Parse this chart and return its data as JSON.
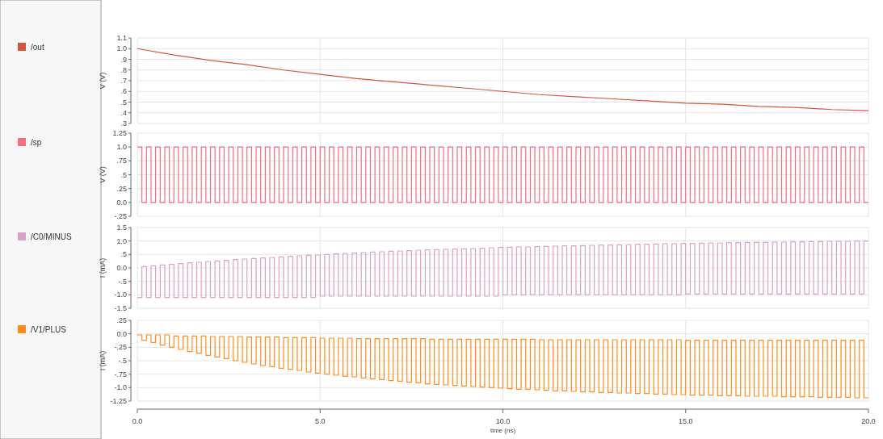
{
  "chart_data": [
    {
      "type": "line",
      "ylabel": "V (V)",
      "legend": "left",
      "grid": true,
      "tick_labels": "y",
      "xlim": [
        0,
        20
      ],
      "xticks": [
        {
          "value": 0,
          "label": null
        },
        {
          "value": 5,
          "label": null
        },
        {
          "value": 10,
          "label": null
        },
        {
          "value": 15,
          "label": null
        },
        {
          "value": 20,
          "label": null
        }
      ],
      "ylim": [
        0.3,
        1.1
      ],
      "yticks": [
        {
          "value": 1.1,
          "label": "1.1"
        },
        {
          "value": 1.0,
          "label": "1.0"
        },
        {
          "value": 0.9,
          "label": ".9"
        },
        {
          "value": 0.8,
          "label": ".8"
        },
        {
          "value": 0.7,
          "label": ".7"
        },
        {
          "value": 0.6,
          "label": ".6"
        },
        {
          "value": 0.5,
          "label": ".5"
        },
        {
          "value": 0.4,
          "label": ".4"
        },
        {
          "value": 0.3,
          "label": ".3"
        }
      ],
      "series": [
        {
          "name": "/out",
          "color": "#d4553a",
          "x": [
            0,
            1,
            2,
            3,
            4,
            5,
            6,
            7,
            8,
            9,
            10,
            11,
            12,
            13,
            14,
            15,
            16,
            17,
            18,
            19,
            20
          ],
          "values": [
            1.0,
            0.94,
            0.89,
            0.85,
            0.8,
            0.76,
            0.72,
            0.69,
            0.66,
            0.63,
            0.6,
            0.57,
            0.55,
            0.53,
            0.51,
            0.49,
            0.48,
            0.46,
            0.45,
            0.43,
            0.42
          ]
        }
      ]
    },
    {
      "type": "step",
      "ylabel": "V (V)",
      "legend": "left",
      "grid": true,
      "tick_labels": "y",
      "xlim": [
        0,
        20
      ],
      "xticks": [
        {
          "value": 0,
          "label": null
        },
        {
          "value": 5,
          "label": null
        },
        {
          "value": 10,
          "label": null
        },
        {
          "value": 15,
          "label": null
        },
        {
          "value": 20,
          "label": null
        }
      ],
      "ylim": [
        -0.25,
        1.25
      ],
      "yticks": [
        {
          "value": 1.25,
          "label": "1.25"
        },
        {
          "value": 1.0,
          "label": "1.0"
        },
        {
          "value": 0.75,
          "label": ".75"
        },
        {
          "value": 0.5,
          "label": ".5"
        },
        {
          "value": 0.25,
          "label": ".25"
        },
        {
          "value": 0,
          "label": "0.0"
        },
        {
          "value": -0.25,
          "label": "-.25"
        }
      ],
      "x": [
        0,
        0.125,
        0.25,
        0.375,
        0.5,
        0.625,
        0.75,
        0.875,
        1,
        1.125,
        1.25,
        1.375,
        1.5,
        1.625,
        1.75,
        1.875,
        2,
        2.125,
        2.25,
        2.375,
        2.5,
        2.625,
        2.75,
        2.875,
        3,
        3.125,
        3.25,
        3.375,
        3.5,
        3.625,
        3.75,
        3.875,
        4,
        4.125,
        4.25,
        4.375,
        4.5,
        4.625,
        4.75,
        4.875,
        5,
        5.125,
        5.25,
        5.375,
        5.5,
        5.625,
        5.75,
        5.875,
        6,
        6.125,
        6.25,
        6.375,
        6.5,
        6.625,
        6.75,
        6.875,
        7,
        7.125,
        7.25,
        7.375,
        7.5,
        7.625,
        7.75,
        7.875,
        8,
        8.125,
        8.25,
        8.375,
        8.5,
        8.625,
        8.75,
        8.875,
        9,
        9.125,
        9.25,
        9.375,
        9.5,
        9.625,
        9.75,
        9.875,
        10,
        10.125,
        10.25,
        10.375,
        10.5,
        10.625,
        10.75,
        10.875,
        11,
        11.125,
        11.25,
        11.375,
        11.5,
        11.625,
        11.75,
        11.875,
        12,
        12.125,
        12.25,
        12.375,
        12.5,
        12.625,
        12.75,
        12.875,
        13,
        13.125,
        13.25,
        13.375,
        13.5,
        13.625,
        13.75,
        13.875,
        14,
        14.125,
        14.25,
        14.375,
        14.5,
        14.625,
        14.75,
        14.875,
        15,
        15.125,
        15.25,
        15.375,
        15.5,
        15.625,
        15.75,
        15.875,
        16,
        16.125,
        16.25,
        16.375,
        16.5,
        16.625,
        16.75,
        16.875,
        17,
        17.125,
        17.25,
        17.375,
        17.5,
        17.625,
        17.75,
        17.875,
        18,
        18.125,
        18.25,
        18.375,
        18.5,
        18.625,
        18.75,
        18.875,
        19,
        19.125,
        19.25,
        19.375,
        19.5,
        19.625,
        19.75,
        19.875,
        20
      ],
      "series": [
        {
          "name": "/sp",
          "color": "#f26d7d",
          "values": [
            1,
            0,
            1,
            0,
            1,
            0,
            1,
            0,
            1,
            0,
            1,
            0,
            1,
            0,
            1,
            0,
            1,
            0,
            1,
            0,
            1,
            0,
            1,
            0,
            1,
            0,
            1,
            0,
            1,
            0,
            1,
            0,
            1,
            0,
            1,
            0,
            1,
            0,
            1,
            0,
            1,
            0,
            1,
            0,
            1,
            0,
            1,
            0,
            1,
            0,
            1,
            0,
            1,
            0,
            1,
            0,
            1,
            0,
            1,
            0,
            1,
            0,
            1,
            0,
            1,
            0,
            1,
            0,
            1,
            0,
            1,
            0,
            1,
            0,
            1,
            0,
            1,
            0,
            1,
            0,
            1,
            0,
            1,
            0,
            1,
            0,
            1,
            0,
            1,
            0,
            1,
            0,
            1,
            0,
            1,
            0,
            1,
            0,
            1,
            0,
            1,
            0,
            1,
            0,
            1,
            0,
            1,
            0,
            1,
            0,
            1,
            0,
            1,
            0,
            1,
            0,
            1,
            0,
            1,
            0,
            1,
            0,
            1,
            0,
            1,
            0,
            1,
            0,
            1,
            0,
            1,
            0,
            1,
            0,
            1,
            0,
            1,
            0,
            1,
            0,
            1,
            0,
            1,
            0,
            1,
            0,
            1,
            0,
            1,
            0,
            1,
            0,
            1,
            0,
            1,
            0,
            1,
            0,
            1,
            0,
            0
          ]
        }
      ]
    },
    {
      "type": "step",
      "ylabel": "I (mA)",
      "legend": "left",
      "grid": true,
      "tick_labels": "y",
      "xlim": [
        0,
        20
      ],
      "xticks": [
        {
          "value": 0,
          "label": null
        },
        {
          "value": 5,
          "label": null
        },
        {
          "value": 10,
          "label": null
        },
        {
          "value": 15,
          "label": null
        },
        {
          "value": 20,
          "label": null
        }
      ],
      "ylim": [
        -1.5,
        1.5
      ],
      "yticks": [
        {
          "value": 1.5,
          "label": "1.5"
        },
        {
          "value": 1.0,
          "label": "1.0"
        },
        {
          "value": 0.5,
          "label": ".5"
        },
        {
          "value": 0,
          "label": "0.0"
        },
        {
          "value": -0.5,
          "label": "-.5"
        },
        {
          "value": -1.0,
          "label": "-1.0"
        },
        {
          "value": -1.5,
          "label": "-1.5"
        }
      ],
      "x": [
        0,
        0.125,
        0.25,
        0.375,
        0.5,
        0.625,
        0.75,
        0.875,
        1,
        1.125,
        1.25,
        1.375,
        1.5,
        1.625,
        1.75,
        1.875,
        2,
        2.125,
        2.25,
        2.375,
        2.5,
        2.625,
        2.75,
        2.875,
        3,
        3.125,
        3.25,
        3.375,
        3.5,
        3.625,
        3.75,
        3.875,
        4,
        4.125,
        4.25,
        4.375,
        4.5,
        4.625,
        4.75,
        4.875,
        5,
        5.125,
        5.25,
        5.375,
        5.5,
        5.625,
        5.75,
        5.875,
        6,
        6.125,
        6.25,
        6.375,
        6.5,
        6.625,
        6.75,
        6.875,
        7,
        7.125,
        7.25,
        7.375,
        7.5,
        7.625,
        7.75,
        7.875,
        8,
        8.125,
        8.25,
        8.375,
        8.5,
        8.625,
        8.75,
        8.875,
        9,
        9.125,
        9.25,
        9.375,
        9.5,
        9.625,
        9.75,
        9.875,
        10,
        10.125,
        10.25,
        10.375,
        10.5,
        10.625,
        10.75,
        10.875,
        11,
        11.125,
        11.25,
        11.375,
        11.5,
        11.625,
        11.75,
        11.875,
        12,
        12.125,
        12.25,
        12.375,
        12.5,
        12.625,
        12.75,
        12.875,
        13,
        13.125,
        13.25,
        13.375,
        13.5,
        13.625,
        13.75,
        13.875,
        14,
        14.125,
        14.25,
        14.375,
        14.5,
        14.625,
        14.75,
        14.875,
        15,
        15.125,
        15.25,
        15.375,
        15.5,
        15.625,
        15.75,
        15.875,
        16,
        16.125,
        16.25,
        16.375,
        16.5,
        16.625,
        16.75,
        16.875,
        17,
        17.125,
        17.25,
        17.375,
        17.5,
        17.625,
        17.75,
        17.875,
        18,
        18.125,
        18.25,
        18.375,
        18.5,
        18.625,
        18.75,
        18.875,
        19,
        19.125,
        19.25,
        19.375,
        19.5,
        19.625,
        19.75,
        19.875,
        20
      ],
      "series": [
        {
          "name": "/C0/MINUS",
          "color": "#d9a0c8",
          "values": [
            -1.1,
            0.05,
            -1.1,
            0.08,
            -1.1,
            0.11,
            -1.1,
            0.13,
            -1.1,
            0.16,
            -1.1,
            0.19,
            -1.1,
            0.21,
            -1.1,
            0.24,
            -1.1,
            0.26,
            -1.1,
            0.28,
            -1.1,
            0.31,
            -1.1,
            0.33,
            -1.1,
            0.35,
            -1.1,
            0.37,
            -1.1,
            0.39,
            -1.1,
            0.41,
            -1.1,
            0.43,
            -1.1,
            0.45,
            -1.1,
            0.47,
            -1.1,
            0.48,
            -1.05,
            0.5,
            -1.05,
            0.52,
            -1.05,
            0.54,
            -1.05,
            0.55,
            -1.05,
            0.57,
            -1.05,
            0.59,
            -1.05,
            0.6,
            -1.05,
            0.62,
            -1.05,
            0.63,
            -1.05,
            0.64,
            -1.05,
            0.66,
            -1.05,
            0.67,
            -1.05,
            0.68,
            -1.05,
            0.69,
            -1.05,
            0.7,
            -1.05,
            0.71,
            -1.05,
            0.72,
            -1.05,
            0.73,
            -1.05,
            0.75,
            -1.05,
            0.76,
            -1.0,
            0.77,
            -1.0,
            0.78,
            -1.0,
            0.78,
            -1.0,
            0.79,
            -1.0,
            0.8,
            -1.0,
            0.81,
            -1.0,
            0.82,
            -1.0,
            0.82,
            -1.0,
            0.83,
            -1.0,
            0.84,
            -1.0,
            0.85,
            -1.0,
            0.85,
            -1.0,
            0.86,
            -1.0,
            0.87,
            -1.0,
            0.88,
            -1.0,
            0.88,
            -1.0,
            0.89,
            -1.0,
            0.9,
            -1.0,
            0.9,
            -1.0,
            0.91,
            -0.97,
            0.91,
            -0.97,
            0.92,
            -0.97,
            0.93,
            -0.97,
            0.93,
            -0.97,
            0.94,
            -0.97,
            0.94,
            -0.97,
            0.95,
            -0.97,
            0.95,
            -0.97,
            0.95,
            -0.97,
            0.96,
            -0.97,
            0.96,
            -0.97,
            0.97,
            -0.97,
            0.97,
            -0.97,
            0.98,
            -0.97,
            0.98,
            -0.97,
            0.99,
            -0.97,
            0.99,
            -0.97,
            0.99,
            -0.97,
            1.0,
            -0.97,
            1.0,
            1.0
          ]
        }
      ]
    },
    {
      "type": "step",
      "ylabel": "I (mA)",
      "xlabel": "time (ns)",
      "legend": "left",
      "grid": true,
      "xlim": [
        0,
        20
      ],
      "xticks": [
        {
          "value": 0,
          "label": "0.0"
        },
        {
          "value": 5,
          "label": "5.0"
        },
        {
          "value": 10,
          "label": "10.0"
        },
        {
          "value": 15,
          "label": "15.0"
        },
        {
          "value": 20,
          "label": "20.0"
        }
      ],
      "ylim": [
        -1.25,
        0.25
      ],
      "yticks": [
        {
          "value": 0.25,
          "label": ".25"
        },
        {
          "value": 0,
          "label": "0.0"
        },
        {
          "value": -0.25,
          "label": "-.25"
        },
        {
          "value": -0.5,
          "label": "-.5"
        },
        {
          "value": -0.75,
          "label": "-.75"
        },
        {
          "value": -1.0,
          "label": "-1.0"
        },
        {
          "value": -1.25,
          "label": "-1.25"
        }
      ],
      "x": [
        0,
        0.125,
        0.25,
        0.375,
        0.5,
        0.625,
        0.75,
        0.875,
        1,
        1.125,
        1.25,
        1.375,
        1.5,
        1.625,
        1.75,
        1.875,
        2,
        2.125,
        2.25,
        2.375,
        2.5,
        2.625,
        2.75,
        2.875,
        3,
        3.125,
        3.25,
        3.375,
        3.5,
        3.625,
        3.75,
        3.875,
        4,
        4.125,
        4.25,
        4.375,
        4.5,
        4.625,
        4.75,
        4.875,
        5,
        5.125,
        5.25,
        5.375,
        5.5,
        5.625,
        5.75,
        5.875,
        6,
        6.125,
        6.25,
        6.375,
        6.5,
        6.625,
        6.75,
        6.875,
        7,
        7.125,
        7.25,
        7.375,
        7.5,
        7.625,
        7.75,
        7.875,
        8,
        8.125,
        8.25,
        8.375,
        8.5,
        8.625,
        8.75,
        8.875,
        9,
        9.125,
        9.25,
        9.375,
        9.5,
        9.625,
        9.75,
        9.875,
        10,
        10.125,
        10.25,
        10.375,
        10.5,
        10.625,
        10.75,
        10.875,
        11,
        11.125,
        11.25,
        11.375,
        11.5,
        11.625,
        11.75,
        11.875,
        12,
        12.125,
        12.25,
        12.375,
        12.5,
        12.625,
        12.75,
        12.875,
        13,
        13.125,
        13.25,
        13.375,
        13.5,
        13.625,
        13.75,
        13.875,
        14,
        14.125,
        14.25,
        14.375,
        14.5,
        14.625,
        14.75,
        14.875,
        15,
        15.125,
        15.25,
        15.375,
        15.5,
        15.625,
        15.75,
        15.875,
        16,
        16.125,
        16.25,
        16.375,
        16.5,
        16.625,
        16.75,
        16.875,
        17,
        17.125,
        17.25,
        17.375,
        17.5,
        17.625,
        17.75,
        17.875,
        18,
        18.125,
        18.25,
        18.375,
        18.5,
        18.625,
        18.75,
        18.875,
        19,
        19.125,
        19.25,
        19.375,
        19.5,
        19.625,
        19.75,
        19.875,
        20
      ],
      "series": [
        {
          "name": "/V1/PLUS",
          "color": "#ff8c1a",
          "values": [
            -0.02,
            -0.12,
            -0.02,
            -0.16,
            -0.02,
            -0.21,
            -0.02,
            -0.25,
            -0.04,
            -0.29,
            -0.04,
            -0.33,
            -0.04,
            -0.36,
            -0.04,
            -0.4,
            -0.05,
            -0.43,
            -0.05,
            -0.46,
            -0.05,
            -0.5,
            -0.05,
            -0.53,
            -0.06,
            -0.56,
            -0.06,
            -0.59,
            -0.06,
            -0.61,
            -0.06,
            -0.64,
            -0.07,
            -0.66,
            -0.07,
            -0.68,
            -0.07,
            -0.71,
            -0.07,
            -0.73,
            -0.08,
            -0.75,
            -0.08,
            -0.77,
            -0.08,
            -0.79,
            -0.08,
            -0.8,
            -0.09,
            -0.82,
            -0.09,
            -0.84,
            -0.09,
            -0.85,
            -0.09,
            -0.87,
            -0.09,
            -0.88,
            -0.09,
            -0.9,
            -0.09,
            -0.91,
            -0.09,
            -0.93,
            -0.1,
            -0.94,
            -0.1,
            -0.95,
            -0.1,
            -0.96,
            -0.1,
            -0.97,
            -0.1,
            -0.98,
            -0.1,
            -0.99,
            -0.1,
            -1.0,
            -0.1,
            -1.01,
            -0.1,
            -1.02,
            -0.1,
            -1.03,
            -0.1,
            -1.03,
            -0.1,
            -1.04,
            -0.11,
            -1.05,
            -0.11,
            -1.06,
            -0.11,
            -1.06,
            -0.11,
            -1.07,
            -0.11,
            -1.08,
            -0.11,
            -1.08,
            -0.11,
            -1.09,
            -0.11,
            -1.09,
            -0.11,
            -1.1,
            -0.11,
            -1.1,
            -0.11,
            -1.11,
            -0.11,
            -1.11,
            -0.11,
            -1.12,
            -0.11,
            -1.12,
            -0.11,
            -1.13,
            -0.11,
            -1.13,
            -0.12,
            -1.14,
            -0.12,
            -1.14,
            -0.12,
            -1.14,
            -0.12,
            -1.15,
            -0.12,
            -1.15,
            -0.12,
            -1.15,
            -0.12,
            -1.16,
            -0.12,
            -1.16,
            -0.12,
            -1.16,
            -0.12,
            -1.16,
            -0.12,
            -1.17,
            -0.12,
            -1.17,
            -0.12,
            -1.17,
            -0.12,
            -1.17,
            -0.12,
            -1.18,
            -0.12,
            -1.18,
            -0.12,
            -1.18,
            -0.12,
            -1.18,
            -0.12,
            -1.19,
            -0.12,
            -1.19,
            -1.19
          ]
        }
      ]
    }
  ]
}
